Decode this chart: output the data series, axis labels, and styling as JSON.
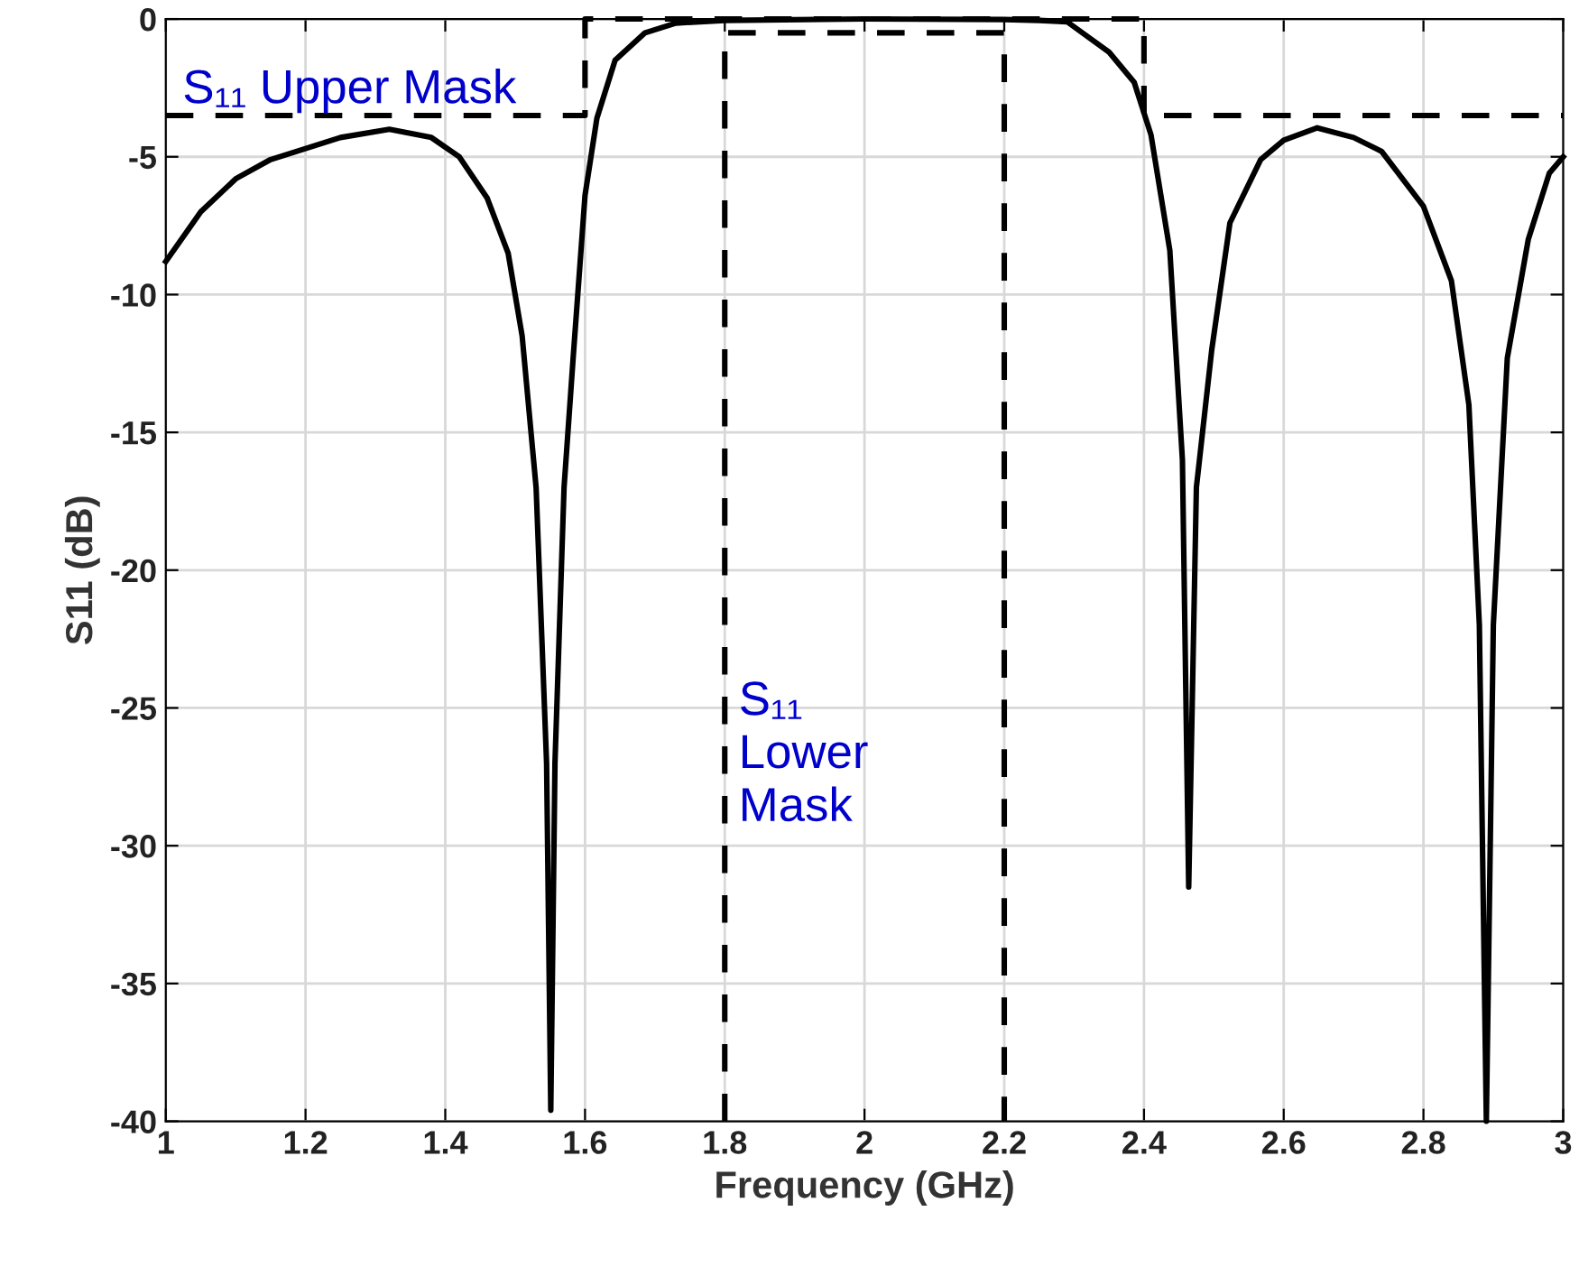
{
  "chart_data": {
    "type": "line",
    "xlabel": "Frequency (GHz)",
    "ylabel": "S11 (dB)",
    "xlim": [
      1,
      3
    ],
    "ylim": [
      -40,
      0
    ],
    "xticks": [
      1,
      1.2,
      1.4,
      1.6,
      1.8,
      2,
      2.2,
      2.4,
      2.6,
      2.8,
      3
    ],
    "yticks": [
      -40,
      -35,
      -30,
      -25,
      -20,
      -15,
      -10,
      -5,
      0
    ],
    "grid": true,
    "marker": "none",
    "annotations": [
      "S₁₁ Upper Mask",
      "S₁₁\nLower\nMask"
    ],
    "series": [
      {
        "color": "#000000",
        "line_style": "solid",
        "x": [
          1.0,
          1.05,
          1.1,
          1.15,
          1.2,
          1.25,
          1.32,
          1.38,
          1.42,
          1.46,
          1.49,
          1.51,
          1.53,
          1.545,
          1.551,
          1.557,
          1.57,
          1.583,
          1.6,
          1.617,
          1.643,
          1.686,
          1.73,
          1.8,
          2.0,
          2.2,
          2.25,
          2.29,
          2.35,
          2.386,
          2.41,
          2.437,
          2.455,
          2.464,
          2.475,
          2.497,
          2.523,
          2.567,
          2.6,
          2.648,
          2.7,
          2.74,
          2.8,
          2.84,
          2.865,
          2.88,
          2.89,
          2.9,
          2.92,
          2.95,
          2.98,
          3.0
        ],
        "values": [
          -8.8,
          -7.0,
          -5.8,
          -5.1,
          -4.7,
          -4.3,
          -4.0,
          -4.3,
          -5.0,
          -6.5,
          -8.5,
          -11.5,
          -17,
          -27,
          -39.6,
          -27,
          -17,
          -12.3,
          -6.4,
          -3.6,
          -1.5,
          -0.5,
          -0.15,
          -0.05,
          0,
          -0.02,
          -0.05,
          -0.1,
          -1.2,
          -2.3,
          -4.2,
          -8.4,
          -16,
          -31.5,
          -17,
          -12,
          -7.4,
          -5.1,
          -4.4,
          -3.95,
          -4.3,
          -4.8,
          -6.8,
          -9.5,
          -14,
          -22,
          -40,
          -22,
          -12.3,
          -8,
          -5.6,
          -5.0
        ]
      },
      {
        "color": "#000000",
        "line_style": "dashed",
        "x": [
          1,
          1.6,
          1.6,
          2.4,
          2.4,
          3
        ],
        "values": [
          -3.5,
          -3.5,
          0,
          0,
          -3.5,
          -3.5
        ]
      },
      {
        "color": "#000000",
        "line_style": "dashed",
        "x": [
          1.8,
          1.8,
          2.2,
          2.2
        ],
        "values": [
          -40,
          -0.5,
          -0.5,
          -40
        ]
      }
    ]
  }
}
